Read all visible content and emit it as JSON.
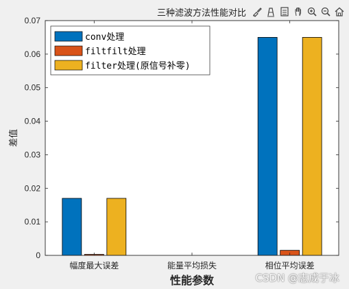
{
  "toolbar": {
    "title": "三种滤波方法性能对比",
    "icons": [
      "brush-icon",
      "data-tips-icon",
      "save-icon",
      "pan-icon",
      "zoom-in-icon",
      "zoom-out-icon",
      "home-icon"
    ]
  },
  "watermark": "CSDN @志成于冰",
  "chart_data": {
    "type": "bar",
    "title": "",
    "xlabel": "性能参数",
    "ylabel": "差值",
    "categories": [
      "幅度最大误差",
      "能量平均损失",
      "相位平均误差"
    ],
    "ylim": [
      0,
      0.07
    ],
    "yticks": [
      "0",
      "0.01",
      "0.02",
      "0.03",
      "0.04",
      "0.05",
      "0.06",
      "0.07"
    ],
    "legend_position": "top-left",
    "grid": false,
    "series": [
      {
        "name": "conv处理",
        "color": "#0072bd",
        "values": [
          0.017,
          0.0,
          0.065
        ]
      },
      {
        "name": "filtfilt处理",
        "color": "#d95319",
        "values": [
          0.0003,
          0.0,
          0.0015
        ]
      },
      {
        "name": "filter处理(原信号补零)",
        "color": "#edb120",
        "values": [
          0.017,
          0.0,
          0.065
        ]
      }
    ]
  }
}
